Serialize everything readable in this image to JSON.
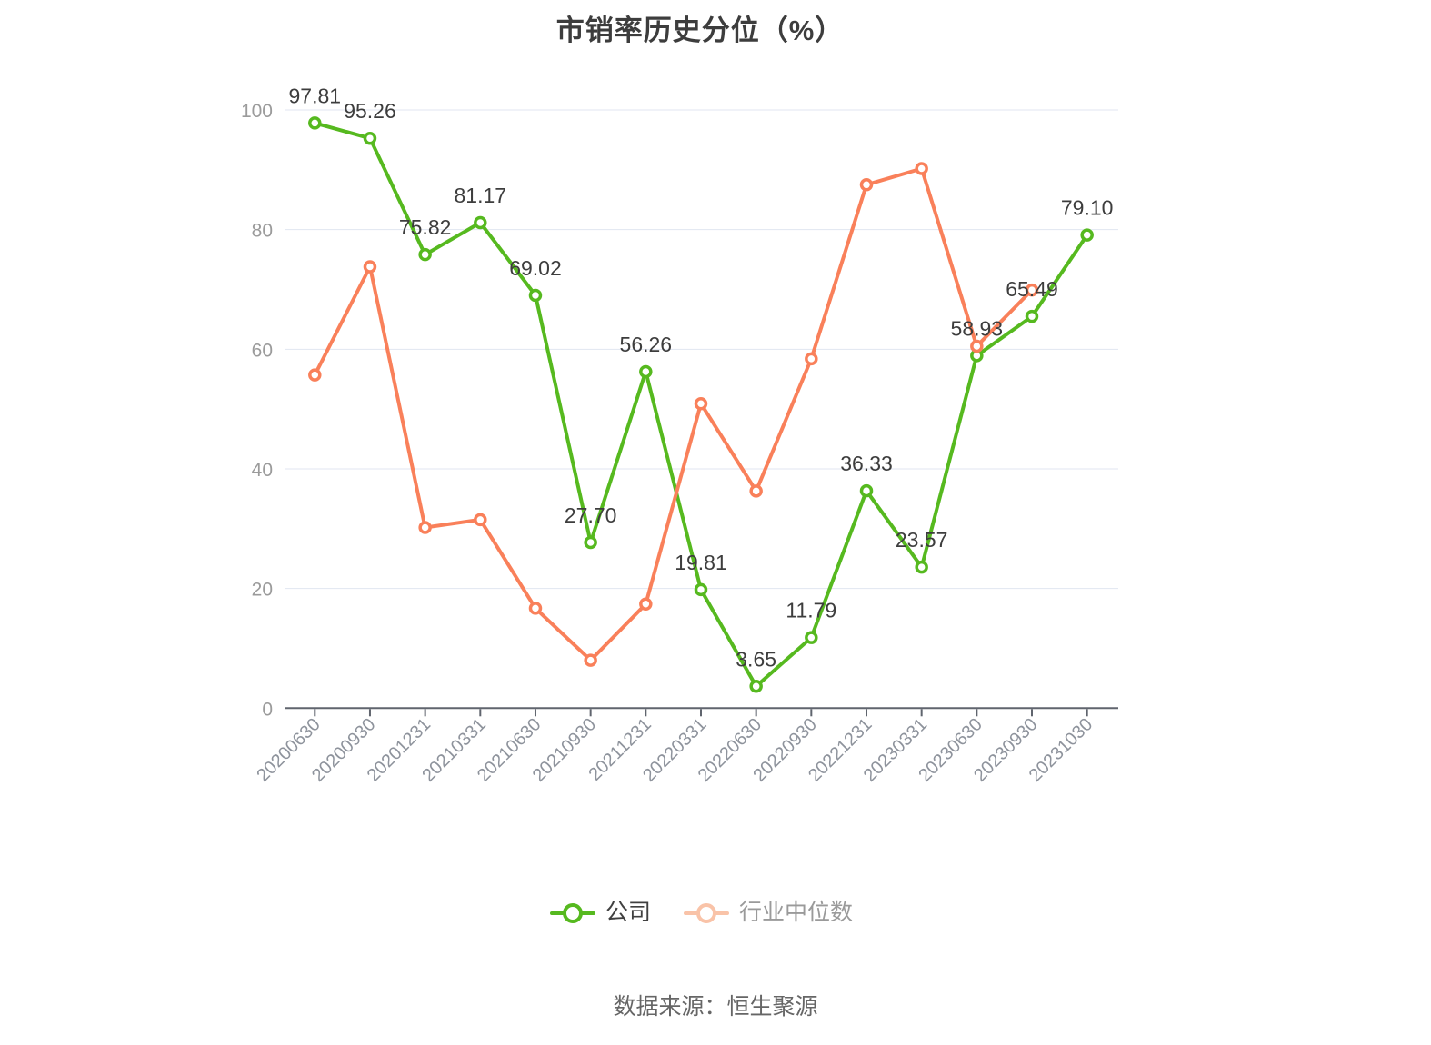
{
  "title": "市销率历史分位（%）",
  "footer": {
    "source_label": "数据来源：恒生聚源"
  },
  "legend": {
    "items": [
      {
        "label": "公司",
        "marker_color": "#56b91f",
        "label_color": "#404040"
      },
      {
        "label": "行业中位数",
        "marker_color": "#f9c3a8",
        "label_color": "#9a9a9a"
      }
    ]
  },
  "chart_data": {
    "type": "line",
    "title": "市销率历史分位（%）",
    "categories": [
      "20200630",
      "20200930",
      "20201231",
      "20210331",
      "20210630",
      "20210930",
      "20211231",
      "20220331",
      "20220630",
      "20220930",
      "20221231",
      "20230331",
      "20230630",
      "20230930",
      "20231030"
    ],
    "series": [
      {
        "name": "公司",
        "color": "#56b91f",
        "values": [
          97.81,
          95.26,
          75.82,
          81.17,
          69.02,
          27.7,
          56.26,
          19.81,
          3.65,
          11.79,
          36.33,
          23.57,
          58.93,
          65.49,
          79.1
        ],
        "point_labels": [
          "97.81",
          "95.26",
          "75.82",
          "81.17",
          "69.02",
          "27.70",
          "56.26",
          "19.81",
          "3.65",
          "11.79",
          "36.33",
          "23.57",
          "58.93",
          "65.49",
          "79.10"
        ]
      },
      {
        "name": "行业中位数",
        "color": "#f9805a",
        "values": [
          55.7,
          73.8,
          30.2,
          31.5,
          16.7,
          8.0,
          17.4,
          50.9,
          36.3,
          58.4,
          87.5,
          90.2,
          60.5,
          69.9,
          null
        ],
        "point_labels": null
      }
    ],
    "ylim": [
      0,
      100
    ],
    "yticks": [
      0,
      20,
      40,
      60,
      80,
      100
    ],
    "grid": true,
    "legend_position": "bottom"
  },
  "colors": {
    "grid_line": "#e1e6f1",
    "axis_line": "#60656e",
    "tick_label": "#8e939c",
    "y_label": "#9b9b9b",
    "value_label": "#3d3d3d",
    "title": "#3d3d3d",
    "background": "#ffffff"
  }
}
